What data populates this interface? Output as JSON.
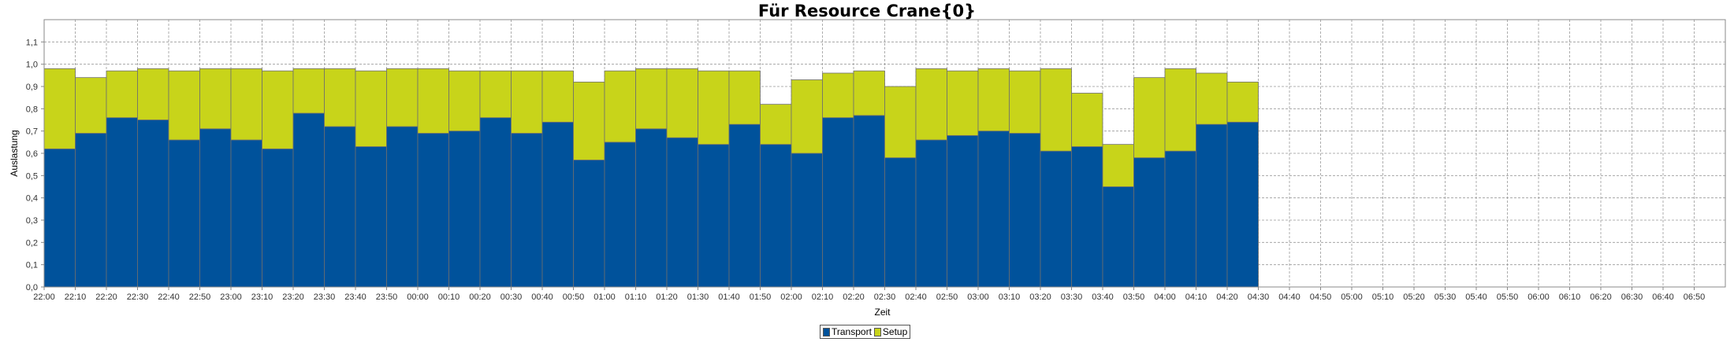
{
  "chart_data": {
    "type": "bar",
    "stacked": true,
    "title": "Für Resource Crane{0}",
    "xlabel": "Zeit",
    "ylabel": "Auslastung",
    "ylim": [
      0,
      1.2
    ],
    "y_ticks": [
      "0,0",
      "0,1",
      "0,2",
      "0,3",
      "0,4",
      "0,5",
      "0,6",
      "0,7",
      "0,8",
      "0,9",
      "1,0",
      "1,1"
    ],
    "grid": true,
    "legend_position": "bottom-center",
    "x_ticks": [
      "22:00",
      "22:10",
      "22:20",
      "22:30",
      "22:40",
      "22:50",
      "23:00",
      "23:10",
      "23:20",
      "23:30",
      "23:40",
      "23:50",
      "00:00",
      "00:10",
      "00:20",
      "00:30",
      "00:40",
      "00:50",
      "01:00",
      "01:10",
      "01:20",
      "01:30",
      "01:40",
      "01:50",
      "02:00",
      "02:10",
      "02:20",
      "02:30",
      "02:40",
      "02:50",
      "03:00",
      "03:10",
      "03:20",
      "03:30",
      "03:40",
      "03:50",
      "04:00",
      "04:10",
      "04:20",
      "04:30",
      "04:40",
      "04:50",
      "05:00",
      "05:10",
      "05:20",
      "05:30",
      "05:40",
      "05:50",
      "06:00",
      "06:10",
      "06:20",
      "06:30",
      "06:40",
      "06:50"
    ],
    "categories": [
      "22:00",
      "22:10",
      "22:20",
      "22:30",
      "22:40",
      "22:50",
      "23:00",
      "23:10",
      "23:20",
      "23:30",
      "23:40",
      "23:50",
      "00:00",
      "00:10",
      "00:20",
      "00:30",
      "00:40",
      "00:50",
      "01:00",
      "01:10",
      "01:20",
      "01:30",
      "01:40",
      "01:50",
      "02:00",
      "02:10",
      "02:20",
      "02:30",
      "02:40",
      "02:50",
      "03:00",
      "03:10",
      "03:20",
      "03:30",
      "03:40",
      "03:50",
      "04:00",
      "04:10",
      "04:20"
    ],
    "series": [
      {
        "name": "Transport",
        "color": "#00529B",
        "values": [
          0.62,
          0.69,
          0.76,
          0.75,
          0.66,
          0.71,
          0.66,
          0.62,
          0.78,
          0.72,
          0.63,
          0.72,
          0.69,
          0.7,
          0.76,
          0.69,
          0.74,
          0.57,
          0.65,
          0.71,
          0.67,
          0.64,
          0.73,
          0.64,
          0.6,
          0.76,
          0.77,
          0.58,
          0.66,
          0.68,
          0.7,
          0.69,
          0.61,
          0.63,
          0.45,
          0.58,
          0.61,
          0.73,
          0.74
        ]
      },
      {
        "name": "Setup",
        "color": "#C8D41A",
        "values": [
          0.36,
          0.25,
          0.21,
          0.23,
          0.31,
          0.27,
          0.32,
          0.35,
          0.2,
          0.26,
          0.34,
          0.26,
          0.29,
          0.27,
          0.21,
          0.28,
          0.23,
          0.35,
          0.32,
          0.27,
          0.31,
          0.33,
          0.24,
          0.18,
          0.33,
          0.2,
          0.2,
          0.32,
          0.32,
          0.29,
          0.28,
          0.28,
          0.37,
          0.24,
          0.19,
          0.36,
          0.37,
          0.23,
          0.18
        ]
      }
    ]
  }
}
